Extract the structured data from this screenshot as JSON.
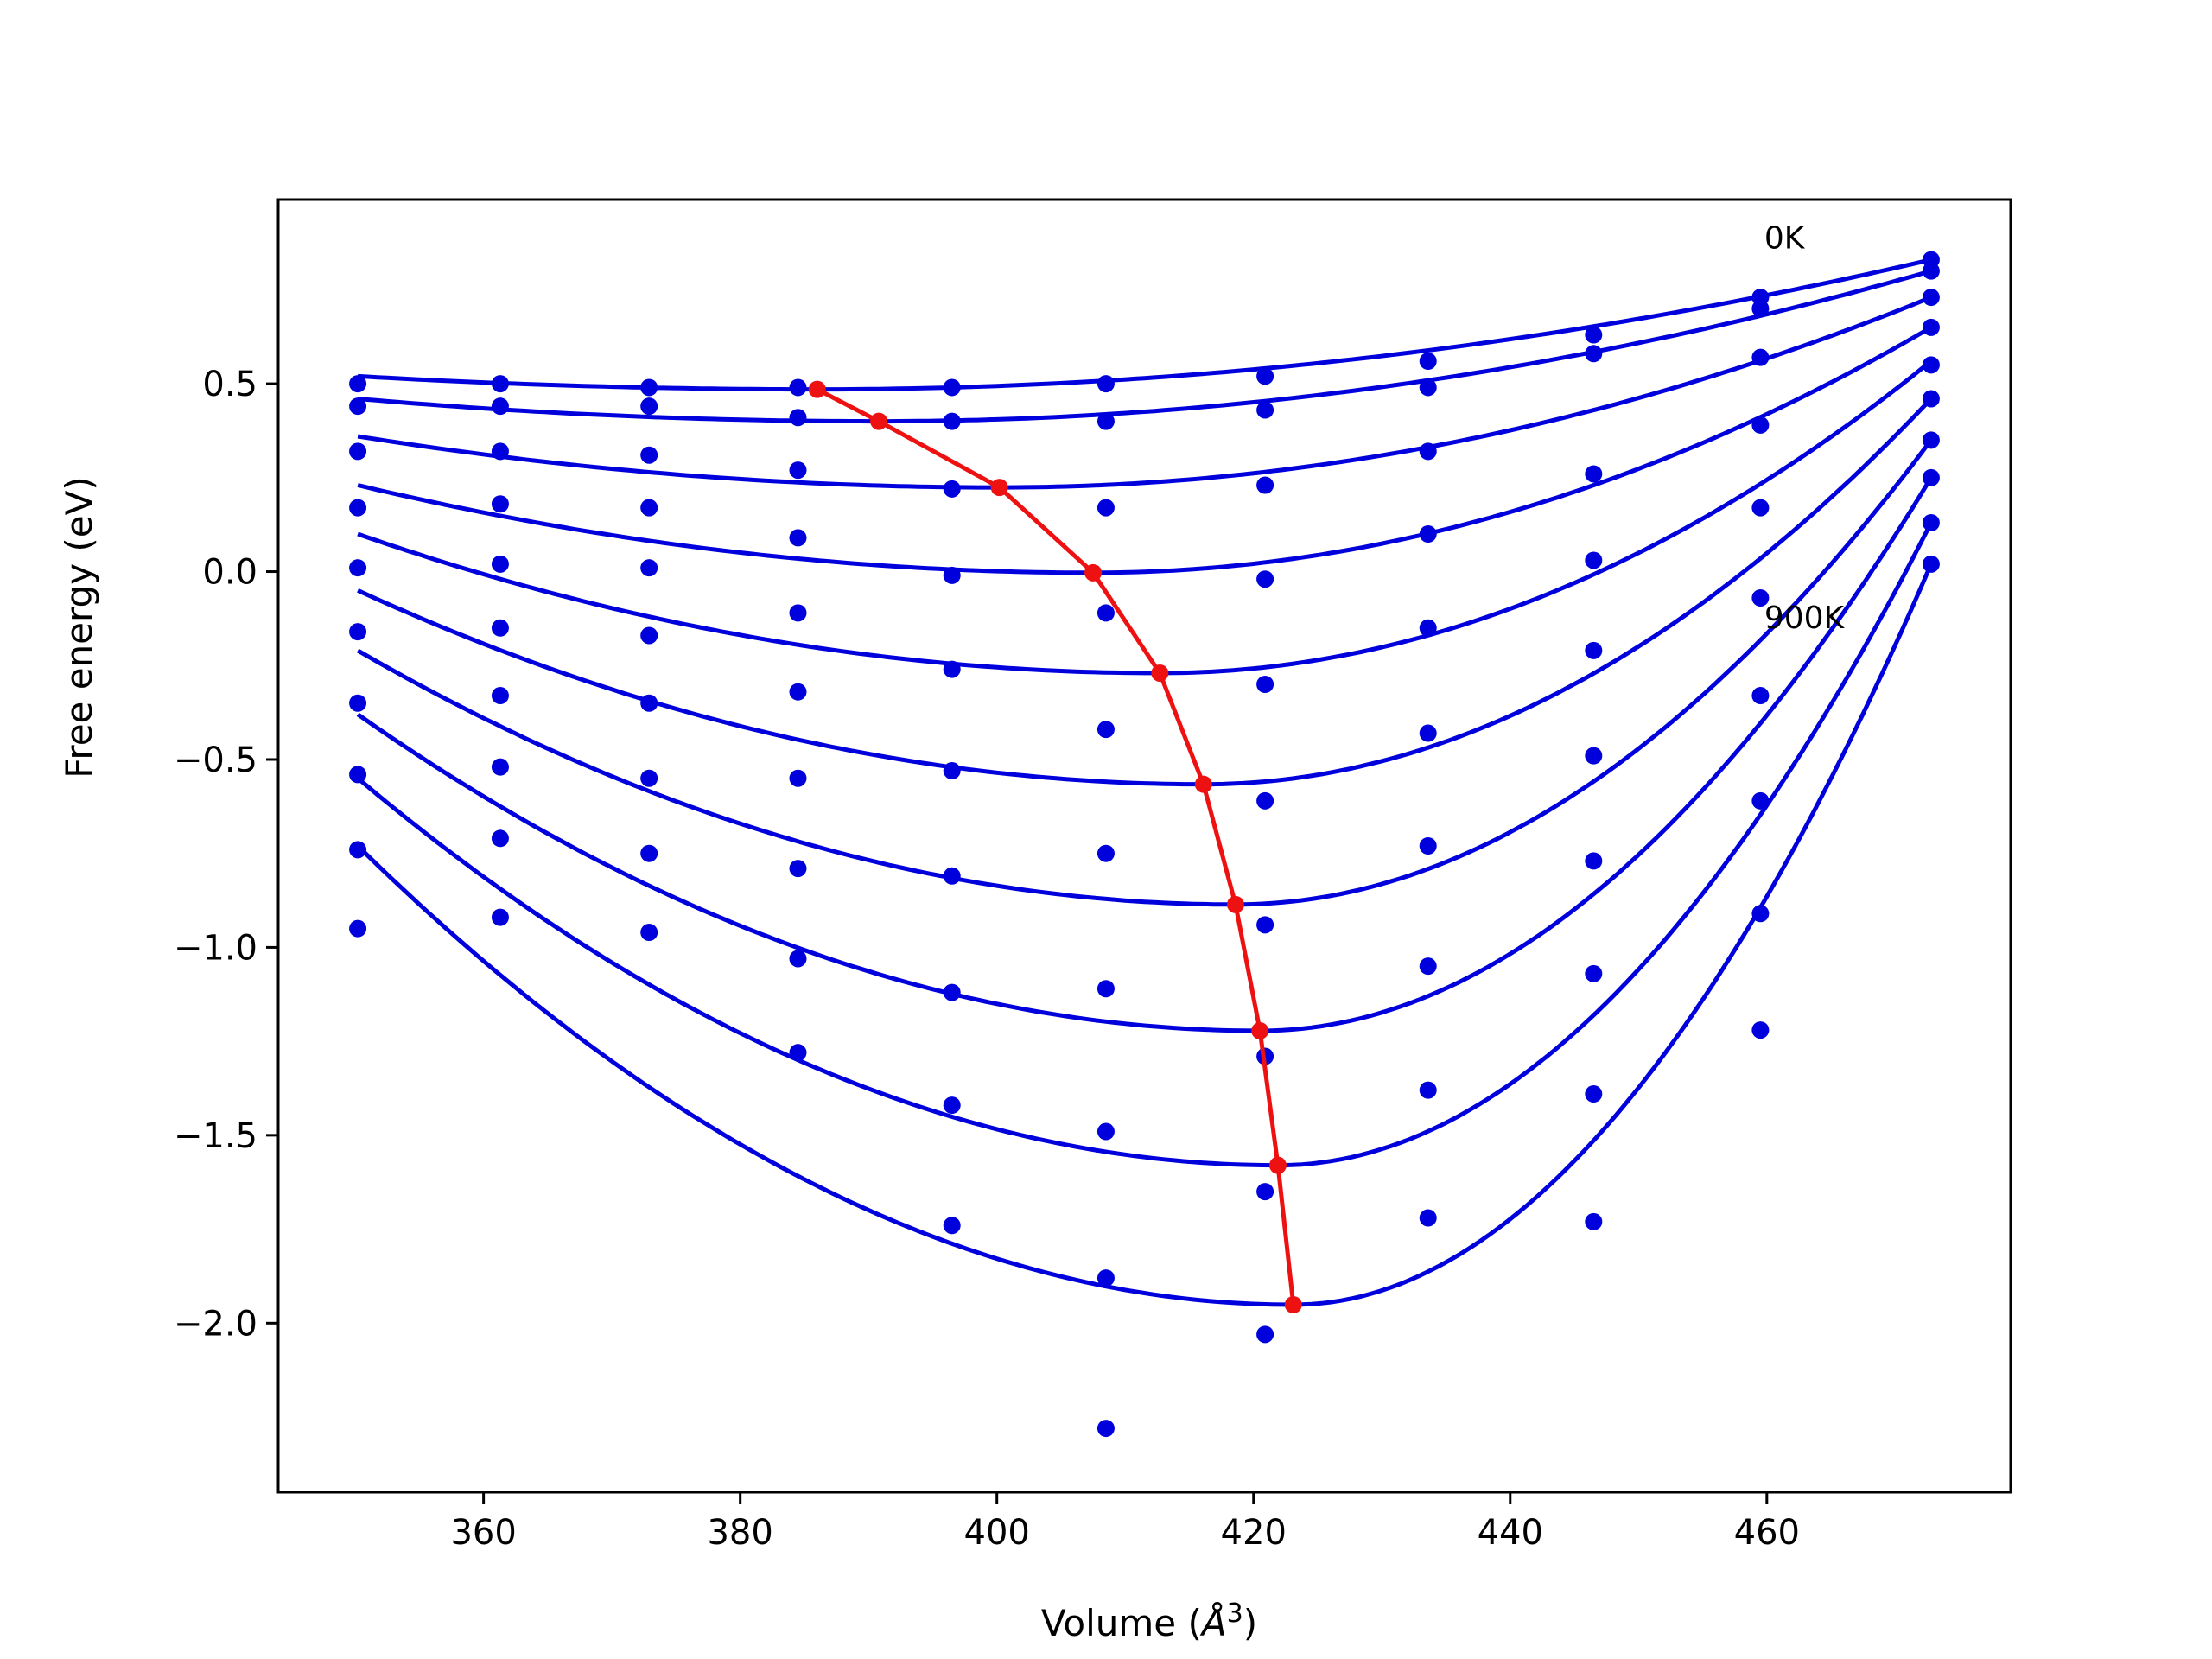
{
  "chart_data": {
    "type": "scatter",
    "title": "",
    "xlabel": "Volume (",
    "xlabel_symbol": "Å",
    "xlabel_exp": "3",
    "xlabel_close": ")",
    "ylabel": "Free energy (eV)",
    "xlim": [
      344,
      479
    ],
    "ylim": [
      -2.45,
      0.99
    ],
    "xticks": [
      {
        "value": 360,
        "label": "360"
      },
      {
        "value": 380,
        "label": "380"
      },
      {
        "value": 400,
        "label": "400"
      },
      {
        "value": 420,
        "label": "420"
      },
      {
        "value": 440,
        "label": "440"
      },
      {
        "value": 460,
        "label": "460"
      }
    ],
    "yticks": [
      {
        "value": 0.5,
        "label": "0.5"
      },
      {
        "value": 0.0,
        "label": "0.0"
      },
      {
        "value": -0.5,
        "label": "−0.5"
      },
      {
        "value": -1.0,
        "label": "−1.0"
      },
      {
        "value": -1.5,
        "label": "−1.5"
      },
      {
        "value": -2.0,
        "label": "−2.0"
      }
    ],
    "grid": false,
    "annotations": [
      {
        "text": "0K",
        "x": 459.8,
        "y": 0.86
      },
      {
        "text": "900K",
        "x": 459.8,
        "y": -0.15
      }
    ],
    "volumes": [
      350.2,
      361.3,
      372.9,
      384.5,
      396.5,
      408.5,
      420.9,
      433.6,
      446.5,
      459.5,
      472.8
    ],
    "series": [
      {
        "values": [
          0.5,
          0.5,
          0.49,
          0.49,
          0.49,
          0.5,
          0.52,
          0.56,
          0.63,
          0.73,
          0.83
        ]
      },
      {
        "values": [
          0.44,
          0.44,
          0.44,
          0.41,
          0.4,
          0.4,
          0.43,
          0.49,
          0.58,
          0.7,
          0.8
        ]
      },
      {
        "values": [
          0.32,
          0.32,
          0.31,
          0.27,
          0.22,
          0.17,
          0.23,
          0.32,
          0.26,
          0.57,
          0.73
        ]
      },
      {
        "values": [
          0.17,
          0.18,
          0.17,
          0.09,
          -0.01,
          -0.11,
          -0.02,
          0.1,
          0.03,
          0.17,
          0.65
        ]
      },
      {
        "values": [
          0.01,
          0.02,
          0.01,
          -0.11,
          -0.26,
          -0.42,
          -0.3,
          -0.15,
          -0.21,
          0.39,
          0.55
        ]
      },
      {
        "values": [
          -0.16,
          -0.15,
          -0.17,
          -0.32,
          -0.53,
          -0.75,
          -0.61,
          -0.43,
          -0.49,
          -0.07,
          0.46
        ]
      },
      {
        "values": [
          -0.35,
          -0.33,
          -0.35,
          -0.55,
          -0.81,
          -1.11,
          -0.94,
          -0.73,
          -0.77,
          -0.33,
          0.35
        ]
      },
      {
        "values": [
          -0.54,
          -0.52,
          -0.55,
          -0.79,
          -1.12,
          -1.49,
          -1.29,
          -1.05,
          -1.07,
          -0.61,
          0.25
        ]
      },
      {
        "values": [
          -0.74,
          -0.71,
          -0.75,
          -1.03,
          -1.42,
          -1.88,
          -1.65,
          -1.38,
          -1.39,
          -0.91,
          0.13
        ]
      },
      {
        "values": [
          -0.95,
          -0.92,
          -0.96,
          -1.28,
          -1.74,
          -2.28,
          -2.03,
          -1.72,
          -1.73,
          -1.22,
          0.02
        ]
      }
    ],
    "fit_curves": [
      {
        "vmin": 386.0,
        "fmin": 0.485,
        "left": 0.52,
        "right": 0.83
      },
      {
        "vmin": 390.8,
        "fmin": 0.4,
        "left": 0.46,
        "right": 0.8
      },
      {
        "vmin": 400.2,
        "fmin": 0.224,
        "left": 0.36,
        "right": 0.73
      },
      {
        "vmin": 407.5,
        "fmin": -0.003,
        "left": 0.23,
        "right": 0.65
      },
      {
        "vmin": 412.7,
        "fmin": -0.27,
        "left": 0.1,
        "right": 0.56
      },
      {
        "vmin": 416.1,
        "fmin": -0.566,
        "left": -0.05,
        "right": 0.46
      },
      {
        "vmin": 418.6,
        "fmin": -0.886,
        "left": -0.21,
        "right": 0.35
      },
      {
        "vmin": 420.5,
        "fmin": -1.222,
        "left": -0.38,
        "right": 0.25
      },
      {
        "vmin": 421.9,
        "fmin": -1.58,
        "left": -0.55,
        "right": 0.13
      },
      {
        "vmin": 423.1,
        "fmin": -1.951,
        "left": -0.73,
        "right": 0.02
      }
    ],
    "minimum_path": {
      "x": [
        386.0,
        390.8,
        400.2,
        407.5,
        412.7,
        416.1,
        418.6,
        420.5,
        421.9,
        423.1
      ],
      "y": [
        0.485,
        0.4,
        0.224,
        -0.003,
        -0.27,
        -0.566,
        -0.886,
        -1.222,
        -1.58,
        -1.951
      ]
    },
    "colors": {
      "points": "#0000dd",
      "fit": "#0000dd",
      "minimum_path": "#ee1111",
      "axes": "#000000"
    }
  }
}
